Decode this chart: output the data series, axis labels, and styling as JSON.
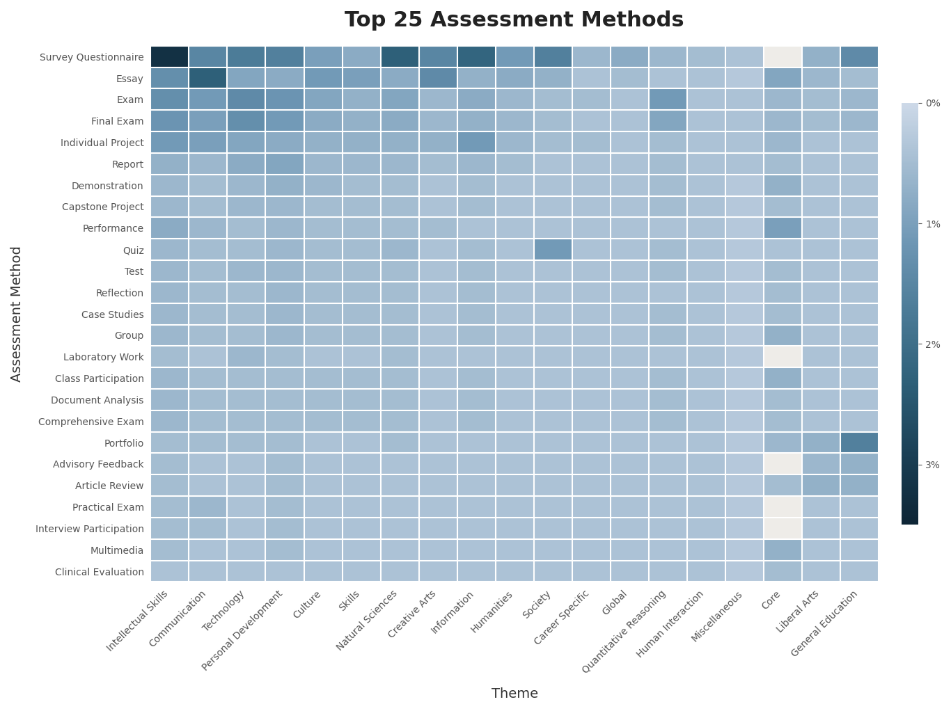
{
  "title": "Top 25 Assessment Methods",
  "xlabel": "Theme",
  "ylabel": "Assessment Method",
  "assessment_methods": [
    "Survey Questionnaire",
    "Essay",
    "Exam",
    "Final Exam",
    "Individual Project",
    "Report",
    "Demonstration",
    "Capstone Project",
    "Performance",
    "Quiz",
    "Test",
    "Reflection",
    "Case Studies",
    "Group",
    "Laboratory Work",
    "Class Participation",
    "Document Analysis",
    "Comprehensive Exam",
    "Portfolio",
    "Advisory Feedback",
    "Article Review",
    "Practical Exam",
    "Interview Participation",
    "Multimedia",
    "Clinical Evaluation"
  ],
  "themes": [
    "Intellectual Skills",
    "Communication",
    "Technology",
    "Personal Development",
    "Culture",
    "Skills",
    "Natural Sciences",
    "Creative Arts",
    "Information",
    "Humanities",
    "Society",
    "Career Specific",
    "Global",
    "Quantitative Reasoning",
    "Human Interaction",
    "Miscellaneous",
    "Core",
    "Liberal Arts",
    "General Education"
  ],
  "data": [
    [
      3.2,
      1.5,
      1.7,
      1.6,
      1.0,
      0.8,
      2.3,
      1.5,
      2.2,
      1.1,
      1.6,
      0.6,
      0.8,
      0.6,
      0.5,
      0.4,
      -1.0,
      0.7,
      1.4
    ],
    [
      1.3,
      2.3,
      0.9,
      0.8,
      1.1,
      1.0,
      0.8,
      1.4,
      0.7,
      0.8,
      0.7,
      0.4,
      0.5,
      0.4,
      0.4,
      0.3,
      0.9,
      0.6,
      0.5
    ],
    [
      1.3,
      1.1,
      1.4,
      1.2,
      0.9,
      0.7,
      0.9,
      0.6,
      0.8,
      0.6,
      0.5,
      0.5,
      0.4,
      1.1,
      0.4,
      0.4,
      0.6,
      0.5,
      0.6
    ],
    [
      1.2,
      1.0,
      1.3,
      1.1,
      0.8,
      0.7,
      0.8,
      0.6,
      0.7,
      0.6,
      0.5,
      0.4,
      0.4,
      0.9,
      0.4,
      0.4,
      0.6,
      0.5,
      0.6
    ],
    [
      1.1,
      1.0,
      0.9,
      0.8,
      0.7,
      0.7,
      0.7,
      0.7,
      1.1,
      0.6,
      0.5,
      0.5,
      0.4,
      0.5,
      0.4,
      0.4,
      0.6,
      0.4,
      0.4
    ],
    [
      0.7,
      0.6,
      0.8,
      0.9,
      0.6,
      0.6,
      0.6,
      0.5,
      0.6,
      0.5,
      0.4,
      0.4,
      0.4,
      0.5,
      0.4,
      0.4,
      0.5,
      0.4,
      0.4
    ],
    [
      0.6,
      0.5,
      0.6,
      0.7,
      0.6,
      0.5,
      0.5,
      0.4,
      0.5,
      0.4,
      0.4,
      0.4,
      0.4,
      0.5,
      0.4,
      0.3,
      0.7,
      0.4,
      0.4
    ],
    [
      0.6,
      0.5,
      0.6,
      0.6,
      0.5,
      0.5,
      0.5,
      0.4,
      0.5,
      0.4,
      0.4,
      0.4,
      0.4,
      0.5,
      0.4,
      0.3,
      0.5,
      0.4,
      0.4
    ],
    [
      0.8,
      0.6,
      0.5,
      0.6,
      0.5,
      0.5,
      0.5,
      0.5,
      0.4,
      0.4,
      0.4,
      0.4,
      0.4,
      0.4,
      0.4,
      0.3,
      1.0,
      0.4,
      0.4
    ],
    [
      0.6,
      0.5,
      0.5,
      0.6,
      0.5,
      0.5,
      0.6,
      0.4,
      0.5,
      0.4,
      1.1,
      0.4,
      0.4,
      0.5,
      0.4,
      0.3,
      0.4,
      0.4,
      0.4
    ],
    [
      0.6,
      0.5,
      0.6,
      0.6,
      0.5,
      0.5,
      0.5,
      0.4,
      0.5,
      0.4,
      0.4,
      0.4,
      0.4,
      0.5,
      0.4,
      0.3,
      0.5,
      0.4,
      0.4
    ],
    [
      0.6,
      0.5,
      0.5,
      0.6,
      0.5,
      0.5,
      0.5,
      0.4,
      0.5,
      0.4,
      0.4,
      0.4,
      0.4,
      0.4,
      0.4,
      0.3,
      0.5,
      0.4,
      0.4
    ],
    [
      0.6,
      0.5,
      0.5,
      0.6,
      0.5,
      0.5,
      0.5,
      0.4,
      0.5,
      0.4,
      0.4,
      0.4,
      0.4,
      0.5,
      0.4,
      0.3,
      0.5,
      0.4,
      0.4
    ],
    [
      0.6,
      0.5,
      0.5,
      0.6,
      0.5,
      0.5,
      0.5,
      0.4,
      0.5,
      0.4,
      0.4,
      0.4,
      0.4,
      0.5,
      0.4,
      0.3,
      0.7,
      0.4,
      0.4
    ],
    [
      0.5,
      0.4,
      0.6,
      0.5,
      0.4,
      0.4,
      0.5,
      0.4,
      0.4,
      0.4,
      0.4,
      0.4,
      0.4,
      0.4,
      0.4,
      0.3,
      -1.0,
      0.4,
      0.4
    ],
    [
      0.6,
      0.5,
      0.5,
      0.5,
      0.5,
      0.5,
      0.5,
      0.4,
      0.5,
      0.4,
      0.4,
      0.4,
      0.4,
      0.5,
      0.4,
      0.3,
      0.7,
      0.4,
      0.4
    ],
    [
      0.6,
      0.5,
      0.5,
      0.5,
      0.5,
      0.5,
      0.5,
      0.4,
      0.5,
      0.4,
      0.4,
      0.4,
      0.4,
      0.5,
      0.4,
      0.3,
      0.5,
      0.4,
      0.4
    ],
    [
      0.6,
      0.5,
      0.5,
      0.5,
      0.5,
      0.5,
      0.5,
      0.4,
      0.5,
      0.4,
      0.4,
      0.4,
      0.4,
      0.5,
      0.4,
      0.3,
      0.5,
      0.4,
      0.4
    ],
    [
      0.5,
      0.5,
      0.5,
      0.5,
      0.4,
      0.4,
      0.5,
      0.4,
      0.4,
      0.4,
      0.4,
      0.4,
      0.4,
      0.4,
      0.4,
      0.3,
      0.6,
      0.7,
      1.6
    ],
    [
      0.5,
      0.4,
      0.4,
      0.5,
      0.4,
      0.4,
      0.4,
      0.4,
      0.4,
      0.4,
      0.4,
      0.4,
      0.4,
      0.4,
      0.4,
      0.3,
      -1.0,
      0.6,
      0.7
    ],
    [
      0.5,
      0.4,
      0.4,
      0.5,
      0.4,
      0.4,
      0.4,
      0.4,
      0.4,
      0.4,
      0.4,
      0.4,
      0.4,
      0.4,
      0.4,
      0.3,
      0.5,
      0.7,
      0.7
    ],
    [
      0.5,
      0.6,
      0.4,
      0.5,
      0.4,
      0.4,
      0.4,
      0.4,
      0.4,
      0.4,
      0.4,
      0.4,
      0.4,
      0.4,
      0.4,
      0.3,
      -1.0,
      0.4,
      0.4
    ],
    [
      0.5,
      0.5,
      0.4,
      0.5,
      0.4,
      0.4,
      0.4,
      0.4,
      0.4,
      0.4,
      0.4,
      0.4,
      0.4,
      0.4,
      0.4,
      0.3,
      -1.0,
      0.4,
      0.4
    ],
    [
      0.5,
      0.4,
      0.4,
      0.5,
      0.4,
      0.4,
      0.4,
      0.4,
      0.4,
      0.4,
      0.4,
      0.4,
      0.4,
      0.4,
      0.4,
      0.3,
      0.7,
      0.4,
      0.4
    ],
    [
      0.4,
      0.4,
      0.4,
      0.4,
      0.4,
      0.4,
      0.4,
      0.4,
      0.4,
      0.4,
      0.4,
      0.4,
      0.4,
      0.4,
      0.4,
      0.3,
      0.5,
      0.4,
      0.4
    ]
  ],
  "vmin": 0.0,
  "vmax": 3.5,
  "colorbar_ticks": [
    0.0,
    1.0,
    2.0,
    3.0
  ],
  "colorbar_labels": [
    "0%",
    "1%",
    "2%",
    "3%"
  ],
  "nan_value": -1.0,
  "background_color": "#eeece8",
  "cell_bg_color": "#d4dce8",
  "title_fontsize": 22,
  "axis_label_fontsize": 14,
  "tick_fontsize": 10,
  "cmap_colors": [
    "#cdd9e8",
    "#9db8ce",
    "#6d96b4",
    "#4a7a96",
    "#2d5f78",
    "#1a3f55",
    "#0d2535"
  ]
}
